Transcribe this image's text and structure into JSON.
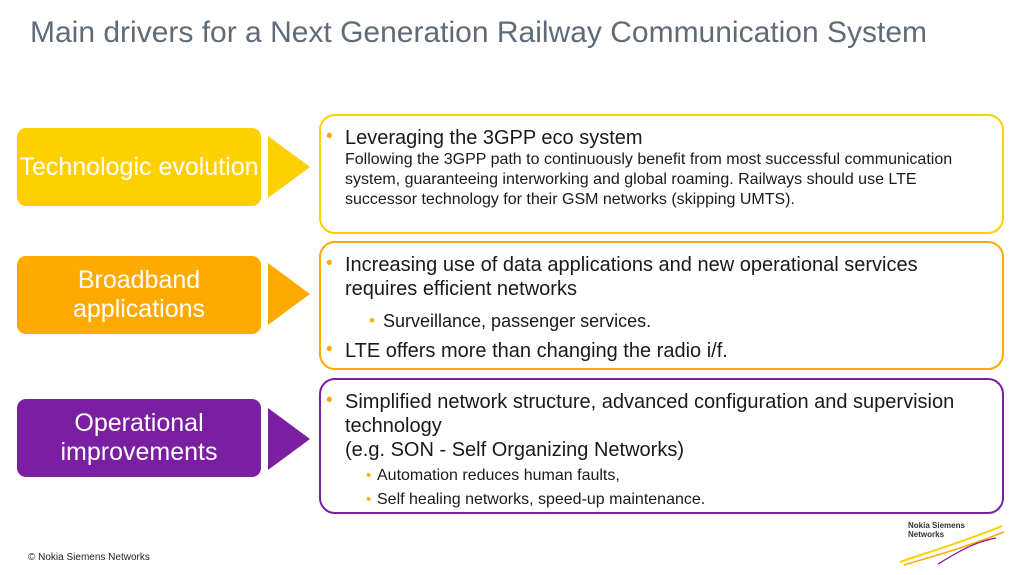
{
  "title": "Main drivers for a Next Generation Railway Communication System",
  "colors": {
    "yellow": "#FFD000",
    "orange": "#FFAA00",
    "purple": "#7B1FA2",
    "title": "#5F6B77"
  },
  "rows": [
    {
      "label": "Technologic evolution",
      "bullets": [
        {
          "text": "Leveraging the 3GPP eco system",
          "desc": "Following the 3GPP path to continuously benefit from most successful communication system, guaranteeing interworking and global roaming. Railways should use LTE successor technology for their GSM networks (skipping UMTS)."
        }
      ]
    },
    {
      "label": "Broadband applications",
      "bullets": [
        {
          "text": "Increasing use of data applications and new operational services requires efficient networks",
          "sub": [
            "Surveillance, passenger services."
          ]
        },
        {
          "text": "LTE offers more than changing the radio i/f."
        }
      ]
    },
    {
      "label": "Operational improvements",
      "bullets": [
        {
          "text": "Simplified network structure, advanced configuration and supervision technology",
          "text2": "(e.g.  SON - Self Organizing Networks)",
          "sub": [
            "Automation reduces human faults,",
            "Self healing networks, speed-up maintenance."
          ]
        }
      ]
    }
  ],
  "footer": {
    "copyright": "© Nokia Siemens Networks",
    "logo_line1": "Nokia Siemens",
    "logo_line2": "Networks"
  }
}
